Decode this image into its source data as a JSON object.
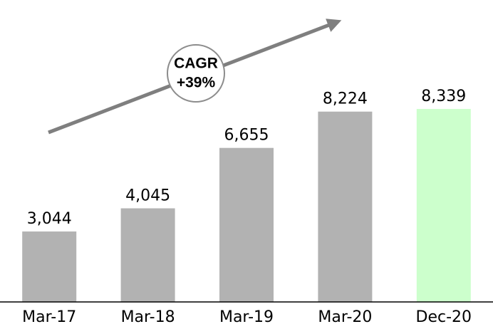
{
  "chart_data": {
    "type": "bar",
    "categories": [
      "Mar-17",
      "Mar-18",
      "Mar-19",
      "Mar-20",
      "Dec-20"
    ],
    "values": [
      3044,
      4045,
      6655,
      8224,
      8339
    ],
    "value_labels": [
      "3,044",
      "4,045",
      "6,655",
      "8,224",
      "8,339"
    ],
    "colors": [
      "#b2b2b2",
      "#b2b2b2",
      "#b2b2b2",
      "#b2b2b2",
      "#ccffcc"
    ],
    "ylim": [
      0,
      10000
    ],
    "annotation": [
      "CAGR",
      "+39%"
    ]
  }
}
